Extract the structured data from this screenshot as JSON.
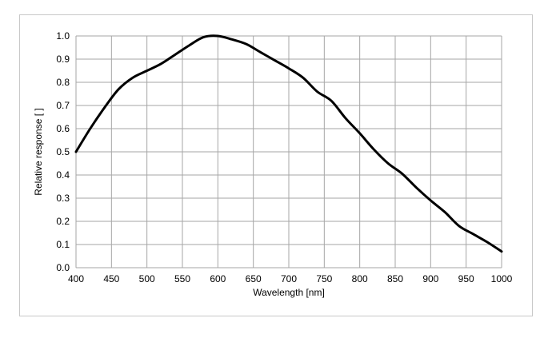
{
  "chart_data": {
    "type": "line",
    "title": "",
    "xlabel": "Wavelength [nm]",
    "ylabel": "Relative response [ ]",
    "xlim": [
      400,
      1000
    ],
    "ylim": [
      0,
      1.0
    ],
    "x_ticks": [
      400,
      450,
      500,
      550,
      600,
      650,
      700,
      750,
      800,
      850,
      900,
      950,
      1000
    ],
    "y_ticks": [
      0.0,
      0.1,
      0.2,
      0.3,
      0.4,
      0.5,
      0.6,
      0.7,
      0.8,
      0.9,
      1.0
    ],
    "y_tick_labels": [
      "0.0",
      "0.1",
      "0.2",
      "0.3",
      "0.4",
      "0.5",
      "0.6",
      "0.7",
      "0.8",
      "0.9",
      "1.0"
    ],
    "grid": true,
    "legend": "none",
    "series": [
      {
        "color": "#000000",
        "x": [
          400,
          420,
          440,
          460,
          480,
          500,
          520,
          540,
          560,
          580,
          600,
          620,
          640,
          660,
          680,
          700,
          720,
          740,
          760,
          780,
          800,
          820,
          840,
          860,
          880,
          900,
          920,
          940,
          960,
          980,
          1000
        ],
        "y": [
          0.5,
          0.6,
          0.69,
          0.77,
          0.82,
          0.85,
          0.88,
          0.92,
          0.96,
          0.995,
          1.0,
          0.985,
          0.965,
          0.93,
          0.895,
          0.86,
          0.82,
          0.76,
          0.72,
          0.645,
          0.58,
          0.51,
          0.45,
          0.405,
          0.345,
          0.29,
          0.24,
          0.18,
          0.145,
          0.11,
          0.07
        ]
      }
    ]
  }
}
